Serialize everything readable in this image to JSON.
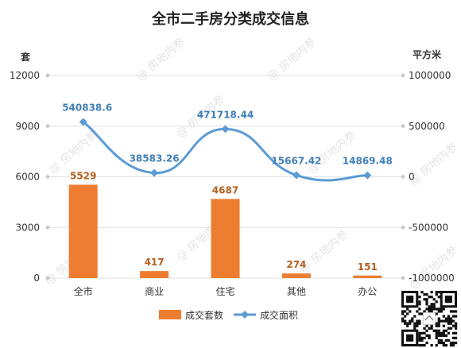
{
  "chart_data": {
    "type": "bar",
    "title": "全市二手房分类成交信息",
    "categories": [
      "全市",
      "商业",
      "住宅",
      "其他",
      "办公"
    ],
    "y_left": {
      "label": "套",
      "range": [
        0,
        12000
      ],
      "ticks": [
        0,
        3000,
        6000,
        9000,
        12000
      ]
    },
    "y_right": {
      "label": "平方米",
      "range": [
        -1000000,
        1000000
      ],
      "ticks": [
        -1000000,
        -500000,
        0,
        500000,
        1000000
      ]
    },
    "series": [
      {
        "name": "成交套数",
        "type": "bar",
        "axis": "left",
        "color": "#ed7d31",
        "values": [
          5529,
          417,
          4687,
          274,
          151
        ],
        "labels": [
          "5529",
          "417",
          "4687",
          "274",
          "151"
        ]
      },
      {
        "name": "成交面积",
        "type": "line",
        "axis": "right",
        "color": "#5b9bd5",
        "values": [
          540838.6,
          38583.26,
          471718.44,
          15667.42,
          14869.48
        ],
        "labels": [
          "540838.6",
          "38583.26",
          "471718.44",
          "15667.42",
          "14869.48"
        ]
      }
    ],
    "legend_position": "bottom",
    "grid": true
  },
  "watermark": "房地内参"
}
